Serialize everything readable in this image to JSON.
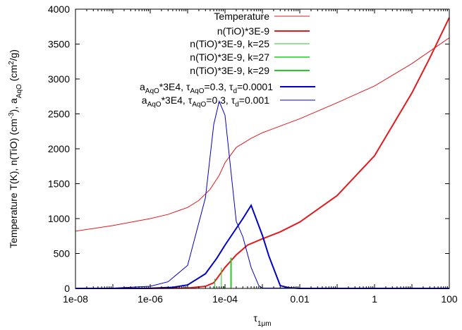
{
  "chart_data": {
    "type": "line",
    "xscale": "log",
    "xlim": [
      1e-08,
      100
    ],
    "ylim": [
      0,
      4000
    ],
    "xlabel_base": "τ",
    "xlabel_sub": "1μm",
    "ylabel": {
      "part1": "Temperature T(K), n(TiO) (cm",
      "sup1": "-3",
      "part2": "), a",
      "sub1": "AqO",
      "part3": " (cm",
      "sup2": "2",
      "part4": "/g)"
    },
    "x_ticks": [
      {
        "value": 1e-08,
        "label": "1e-08"
      },
      {
        "value": 1e-06,
        "label": "1e-06"
      },
      {
        "value": 0.0001,
        "label": "1e-04"
      },
      {
        "value": 0.01,
        "label": "0.01"
      },
      {
        "value": 1,
        "label": "1"
      },
      {
        "value": 100,
        "label": "100"
      }
    ],
    "y_ticks": [
      {
        "value": 0,
        "label": "0"
      },
      {
        "value": 500,
        "label": "500"
      },
      {
        "value": 1000,
        "label": "1000"
      },
      {
        "value": 1500,
        "label": "1500"
      },
      {
        "value": 2000,
        "label": "2000"
      },
      {
        "value": 2500,
        "label": "2500"
      },
      {
        "value": 3000,
        "label": "3000"
      },
      {
        "value": 3500,
        "label": "3500"
      },
      {
        "value": 4000,
        "label": "4000"
      }
    ],
    "series": [
      {
        "name": "Temperature",
        "color": "#e41a1c",
        "width": 1,
        "x": [
          1e-08,
          1e-07,
          1e-06,
          3e-06,
          1e-05,
          2e-05,
          4e-05,
          7e-05,
          0.0001,
          0.0002,
          0.0005,
          0.001,
          0.01,
          0.1,
          1,
          10,
          100
        ],
        "y": [
          820,
          900,
          1000,
          1060,
          1160,
          1260,
          1420,
          1620,
          1800,
          2020,
          2150,
          2230,
          2430,
          2660,
          2900,
          3220,
          3590
        ]
      },
      {
        "name": "n(TiO)*3E-9",
        "color": "#e41a1c",
        "width": 2,
        "x": [
          1e-08,
          1e-06,
          1e-05,
          3e-05,
          5e-05,
          0.0001,
          0.0002,
          0.0004,
          0.001,
          0.003,
          0.01,
          0.1,
          1,
          10,
          30,
          100
        ],
        "y": [
          0,
          0,
          5,
          30,
          80,
          300,
          480,
          620,
          710,
          810,
          950,
          1330,
          1900,
          2800,
          3300,
          3880
        ]
      },
      {
        "name": "n(TiO)*3E-9, k=25",
        "color": "#22cc22",
        "width": 1,
        "type": "impulse",
        "x": [
          5.3e-05,
          8e-05
        ],
        "y": [
          140,
          300
        ]
      },
      {
        "name": "n(TiO)*3E-9, k=27",
        "color": "#22cc22",
        "width": 1.5,
        "type": "impulse",
        "x": [
          9.5e-05
        ],
        "y": [
          30
        ]
      },
      {
        "name": "n(TiO)*3E-9, k=29",
        "color": "#22cc22",
        "width": 2,
        "type": "impulse",
        "x": [
          0.000145
        ],
        "y": [
          440
        ]
      },
      {
        "name": "a_AqO*3E4, τ_AqO=0.3, τ_d=0.0001",
        "color": "#0000cc",
        "width": 2,
        "x": [
          1e-08,
          1e-07,
          1e-06,
          4e-06,
          1e-05,
          3e-05,
          6e-05,
          0.0001,
          0.0003,
          0.0005,
          0.001,
          0.0015,
          0.003,
          0.005,
          0.01,
          100
        ],
        "y": [
          0,
          0,
          3,
          15,
          50,
          210,
          430,
          620,
          1000,
          1190,
          760,
          460,
          40,
          10,
          0,
          0
        ]
      },
      {
        "name": "a_AqO*3E4, τ_AqO=0.3, τ_d=0.001",
        "color": "#0000cc",
        "width": 1,
        "x": [
          1e-08,
          1e-07,
          1e-06,
          3e-06,
          1e-05,
          3e-05,
          5e-05,
          7e-05,
          0.0001,
          0.0002,
          0.0003,
          0.0005,
          0.0008,
          0.001,
          100
        ],
        "y": [
          0,
          5,
          30,
          95,
          330,
          1300,
          2350,
          2680,
          2480,
          960,
          740,
          300,
          40,
          5,
          0
        ]
      }
    ],
    "legend": {
      "position": "top-right",
      "entries": [
        {
          "segs": [
            {
              "t": "Temperature"
            }
          ]
        },
        {
          "segs": [
            {
              "t": "n(TiO)*3E-9"
            }
          ]
        },
        {
          "segs": [
            {
              "t": "n(TiO)*3E-9, k=25"
            }
          ]
        },
        {
          "segs": [
            {
              "t": "n(TiO)*3E-9, k=27"
            }
          ]
        },
        {
          "segs": [
            {
              "t": "n(TiO)*3E-9, k=29"
            }
          ]
        },
        {
          "segs": [
            {
              "t": "a"
            },
            {
              "t": "AqO",
              "s": "sub"
            },
            {
              "t": "*3E4, "
            },
            {
              "t": "τ"
            },
            {
              "t": "AqO",
              "s": "sub"
            },
            {
              "t": "=0.3, "
            },
            {
              "t": "τ"
            },
            {
              "t": "d",
              "s": "sub"
            },
            {
              "t": "=0.0001"
            }
          ]
        },
        {
          "segs": [
            {
              "t": "a"
            },
            {
              "t": "AqO",
              "s": "sub"
            },
            {
              "t": "*3E4, "
            },
            {
              "t": "τ"
            },
            {
              "t": "AqO",
              "s": "sub"
            },
            {
              "t": "=0.3, "
            },
            {
              "t": "τ"
            },
            {
              "t": "d",
              "s": "sub"
            },
            {
              "t": "=0.001"
            }
          ]
        }
      ]
    }
  }
}
